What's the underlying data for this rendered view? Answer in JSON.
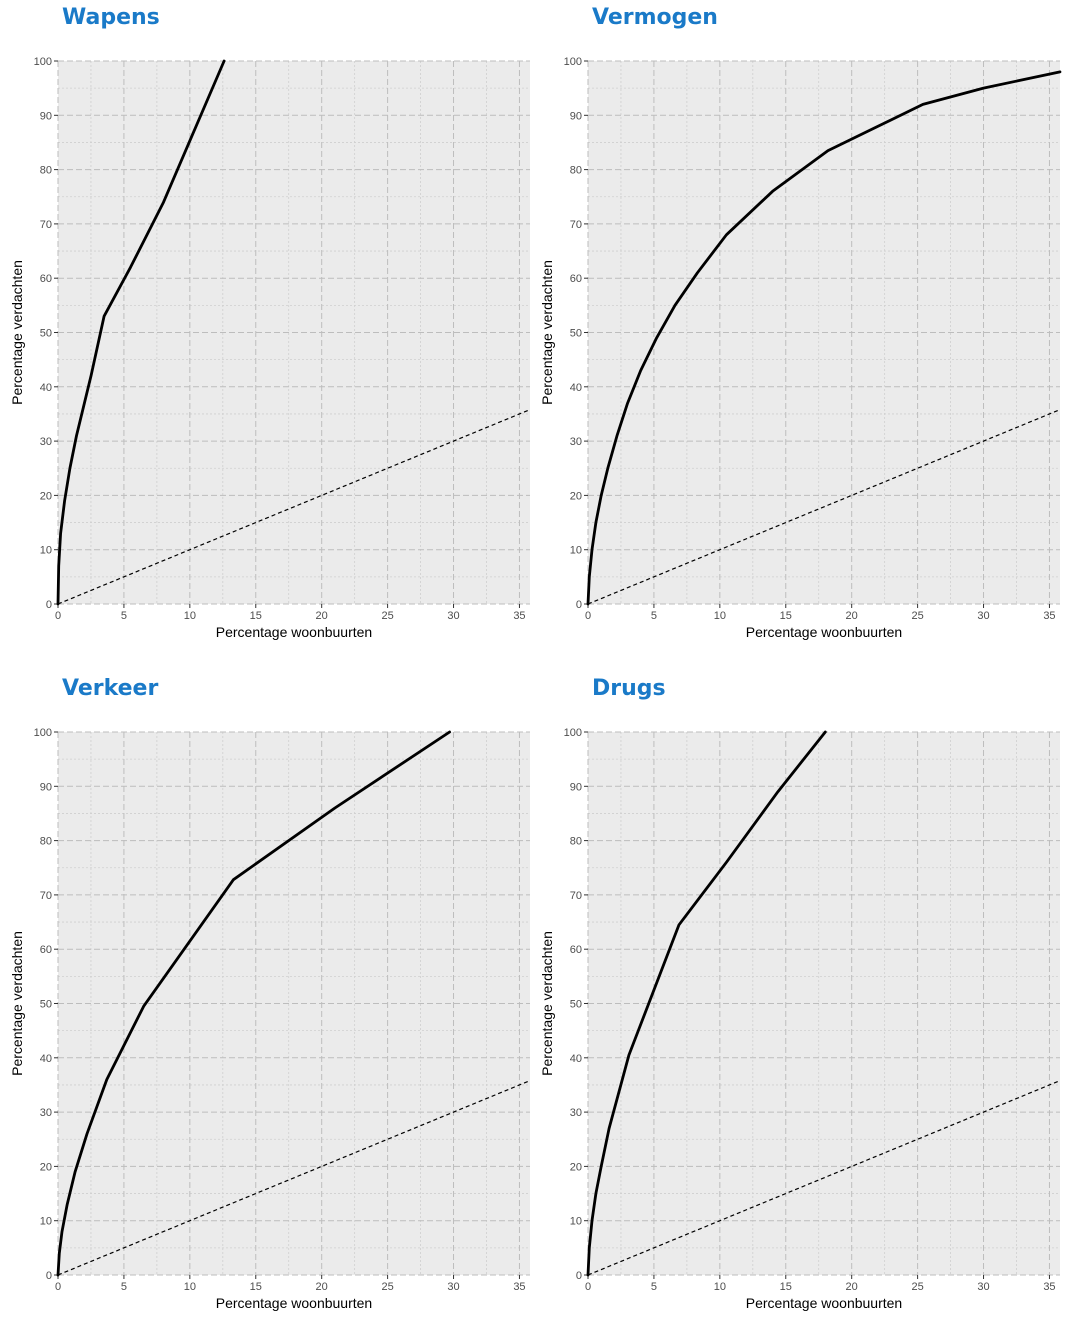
{
  "colors": {
    "title": "#1a7ac8",
    "panel_background": "#ebebeb",
    "major_grid": "#bdbdbd",
    "minor_grid": "#cfcfcf",
    "curve": "#000000",
    "reference_line": "#000000"
  },
  "chart_data": [
    {
      "type": "line",
      "title": "Wapens",
      "xlabel": "Percentage woonbuurten",
      "ylabel": "Percentage verdachten",
      "xlim": [
        0,
        35.8
      ],
      "ylim": [
        0,
        100
      ],
      "xticks": [
        0,
        5,
        10,
        15,
        20,
        25,
        30,
        35
      ],
      "yticks": [
        0,
        10,
        20,
        30,
        40,
        50,
        60,
        70,
        80,
        90,
        100
      ],
      "grid": true,
      "reference_line": {
        "x": [
          0,
          35.8
        ],
        "y": [
          0,
          35.8
        ],
        "style": "dashed"
      },
      "series": [
        {
          "x": [
            0,
            0.05,
            0.2,
            0.5,
            0.9,
            1.4,
            2.5,
            3.5,
            5.5,
            8.0,
            10.3,
            12.6
          ],
          "y": [
            0,
            7,
            13,
            19,
            25,
            31,
            42,
            53,
            62,
            74,
            87,
            100
          ]
        }
      ]
    },
    {
      "type": "line",
      "title": "Vermogen",
      "xlabel": "Percentage woonbuurten",
      "ylabel": "Percentage verdachten",
      "xlim": [
        0,
        35.8
      ],
      "ylim": [
        0,
        100
      ],
      "xticks": [
        0,
        5,
        10,
        15,
        20,
        25,
        30,
        35
      ],
      "yticks": [
        0,
        10,
        20,
        30,
        40,
        50,
        60,
        70,
        80,
        90,
        100
      ],
      "grid": true,
      "reference_line": {
        "x": [
          0,
          35.8
        ],
        "y": [
          0,
          35.8
        ],
        "style": "dashed"
      },
      "series": [
        {
          "x": [
            0,
            0.1,
            0.3,
            0.6,
            1.0,
            1.5,
            2.2,
            3.0,
            4.0,
            5.2,
            6.6,
            8.3,
            10.5,
            14.0,
            18.2,
            25.4,
            30.0,
            35.8
          ],
          "y": [
            0,
            5,
            10,
            15,
            20,
            25,
            31,
            37,
            43,
            49,
            55,
            61,
            68,
            76,
            83.5,
            92,
            95,
            98
          ]
        }
      ]
    },
    {
      "type": "line",
      "title": "Verkeer",
      "xlabel": "Percentage woonbuurten",
      "ylabel": "Percentage verdachten",
      "xlim": [
        0,
        35.8
      ],
      "ylim": [
        0,
        100
      ],
      "xticks": [
        0,
        5,
        10,
        15,
        20,
        25,
        30,
        35
      ],
      "yticks": [
        0,
        10,
        20,
        30,
        40,
        50,
        60,
        70,
        80,
        90,
        100
      ],
      "grid": true,
      "reference_line": {
        "x": [
          0,
          35.8
        ],
        "y": [
          0,
          35.8
        ],
        "style": "dashed"
      },
      "series": [
        {
          "x": [
            0,
            0.1,
            0.3,
            0.7,
            1.3,
            2.2,
            3.7,
            6.5,
            13.3,
            21.0,
            29.7
          ],
          "y": [
            0,
            4,
            8,
            13,
            19,
            26,
            36,
            49.5,
            72.8,
            86,
            100
          ]
        }
      ]
    },
    {
      "type": "line",
      "title": "Drugs",
      "xlabel": "Percentage woonbuurten",
      "ylabel": "Percentage verdachten",
      "xlim": [
        0,
        35.8
      ],
      "ylim": [
        0,
        100
      ],
      "xticks": [
        0,
        5,
        10,
        15,
        20,
        25,
        30,
        35
      ],
      "yticks": [
        0,
        10,
        20,
        30,
        40,
        50,
        60,
        70,
        80,
        90,
        100
      ],
      "grid": true,
      "reference_line": {
        "x": [
          0,
          35.8
        ],
        "y": [
          0,
          35.8
        ],
        "style": "dashed"
      },
      "series": [
        {
          "x": [
            0,
            0.1,
            0.3,
            0.6,
            1.0,
            1.6,
            3.1,
            6.9,
            10.5,
            14.4,
            18.0
          ],
          "y": [
            0,
            5,
            10,
            15,
            20,
            27,
            40.5,
            64.5,
            76,
            89,
            100
          ]
        }
      ]
    }
  ]
}
